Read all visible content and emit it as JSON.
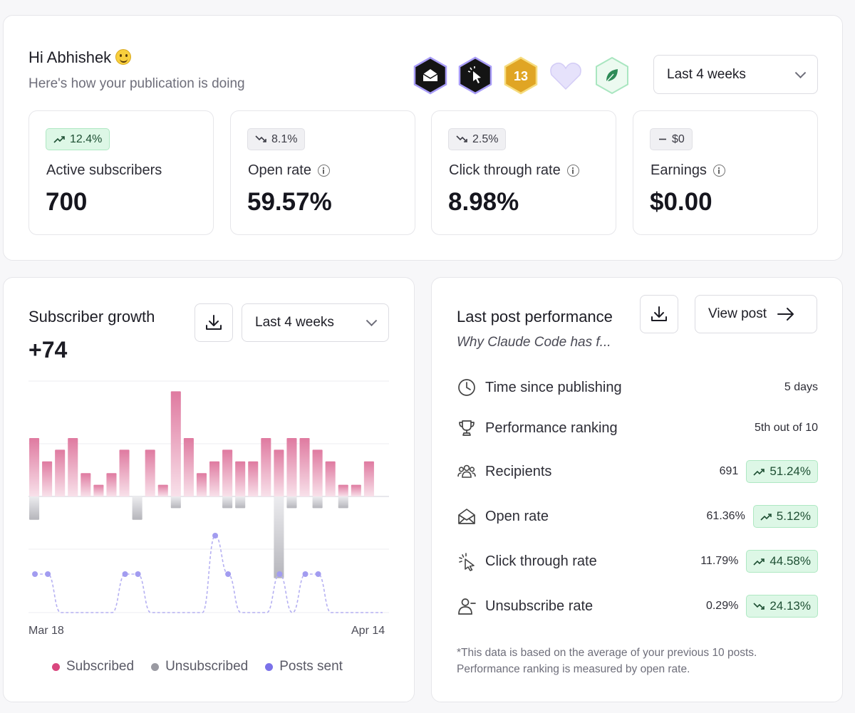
{
  "header": {
    "greeting": "Hi Abhishek",
    "subtitle": "Here's how your publication is doing",
    "period": "Last 4 weeks",
    "badges": [
      {
        "icon": "envelope-open-icon",
        "color": "#141414"
      },
      {
        "icon": "cursor-click-icon",
        "color": "#141414"
      },
      {
        "icon": "gold-hexagon-icon",
        "label": "13",
        "color": "#e0a524"
      },
      {
        "icon": "heart-icon",
        "color": "#e6e2fb"
      },
      {
        "icon": "leaf-icon",
        "color": "#2e8b57"
      }
    ]
  },
  "stats": [
    {
      "change": "12.4%",
      "trend": "up",
      "label": "Active subscribers",
      "value": "700",
      "info": false
    },
    {
      "change": "8.1%",
      "trend": "down",
      "label": "Open rate",
      "value": "59.57%",
      "info": true
    },
    {
      "change": "2.5%",
      "trend": "down",
      "label": "Click through rate",
      "value": "8.98%",
      "info": true
    },
    {
      "change": "$0",
      "trend": "flat",
      "label": "Earnings",
      "value": "$0.00",
      "info": true
    }
  ],
  "growth": {
    "title": "Subscriber growth",
    "count": "+74",
    "period": "Last 4 weeks",
    "date_start": "Mar 18",
    "date_end": "Apr 14",
    "legend": {
      "subscribed": "Subscribed",
      "unsubscribed": "Unsubscribed",
      "posts_sent": "Posts sent"
    },
    "colors": {
      "subscribed": "#d9477e",
      "unsubscribed": "#9a9aa2",
      "posts_sent": "#7b72e9"
    }
  },
  "chart_data": {
    "type": "bar",
    "x": [
      "Mar 18",
      "",
      "",
      "",
      "",
      "",
      "",
      "",
      "",
      "",
      "",
      "",
      "",
      "",
      "",
      "",
      "",
      "",
      "",
      "",
      "",
      "",
      "",
      "",
      "",
      "",
      "",
      "Apr 14"
    ],
    "series": [
      {
        "name": "Subscribed",
        "values": [
          5,
          3,
          4,
          5,
          2,
          1,
          2,
          4,
          0,
          4,
          1,
          9,
          5,
          2,
          3,
          4,
          3,
          3,
          5,
          4,
          5,
          5,
          4,
          3,
          1,
          1,
          3,
          0
        ]
      },
      {
        "name": "Unsubscribed",
        "values": [
          -2,
          0,
          0,
          0,
          0,
          0,
          0,
          0,
          -2,
          0,
          0,
          -1,
          0,
          0,
          0,
          -1,
          -1,
          0,
          0,
          -7,
          -1,
          0,
          -1,
          0,
          -1,
          0,
          0,
          0
        ]
      },
      {
        "name": "Posts sent",
        "values": [
          1,
          1,
          0,
          0,
          0,
          0,
          0,
          1,
          1,
          0,
          0,
          0,
          0,
          0,
          2,
          1,
          0,
          0,
          0,
          1,
          0,
          1,
          1,
          0,
          0,
          0,
          0,
          0
        ]
      }
    ],
    "legend": "bottom",
    "grid": true
  },
  "performance": {
    "title": "Last post performance",
    "post_title": "Why Claude Code has f...",
    "view_post": "View post",
    "rows": [
      {
        "icon": "clock-icon",
        "label": "Time since publishing",
        "value": "5 days"
      },
      {
        "icon": "trophy-icon",
        "label": "Performance ranking",
        "value": "5th out of 10"
      },
      {
        "icon": "users-icon",
        "label": "Recipients",
        "value": "691",
        "change": "51.24%",
        "trend": "up"
      },
      {
        "icon": "envelope-open-icon",
        "label": "Open rate",
        "value": "61.36%",
        "change": "5.12%",
        "trend": "up"
      },
      {
        "icon": "cursor-click-icon",
        "label": "Click through rate",
        "value": "11.79%",
        "change": "44.58%",
        "trend": "up"
      },
      {
        "icon": "user-minus-icon",
        "label": "Unsubscribe rate",
        "value": "0.29%",
        "change": "24.13%",
        "trend": "down"
      }
    ],
    "footnote": "*This data is based on the average of your previous 10 posts. Performance ranking is measured by open rate."
  }
}
